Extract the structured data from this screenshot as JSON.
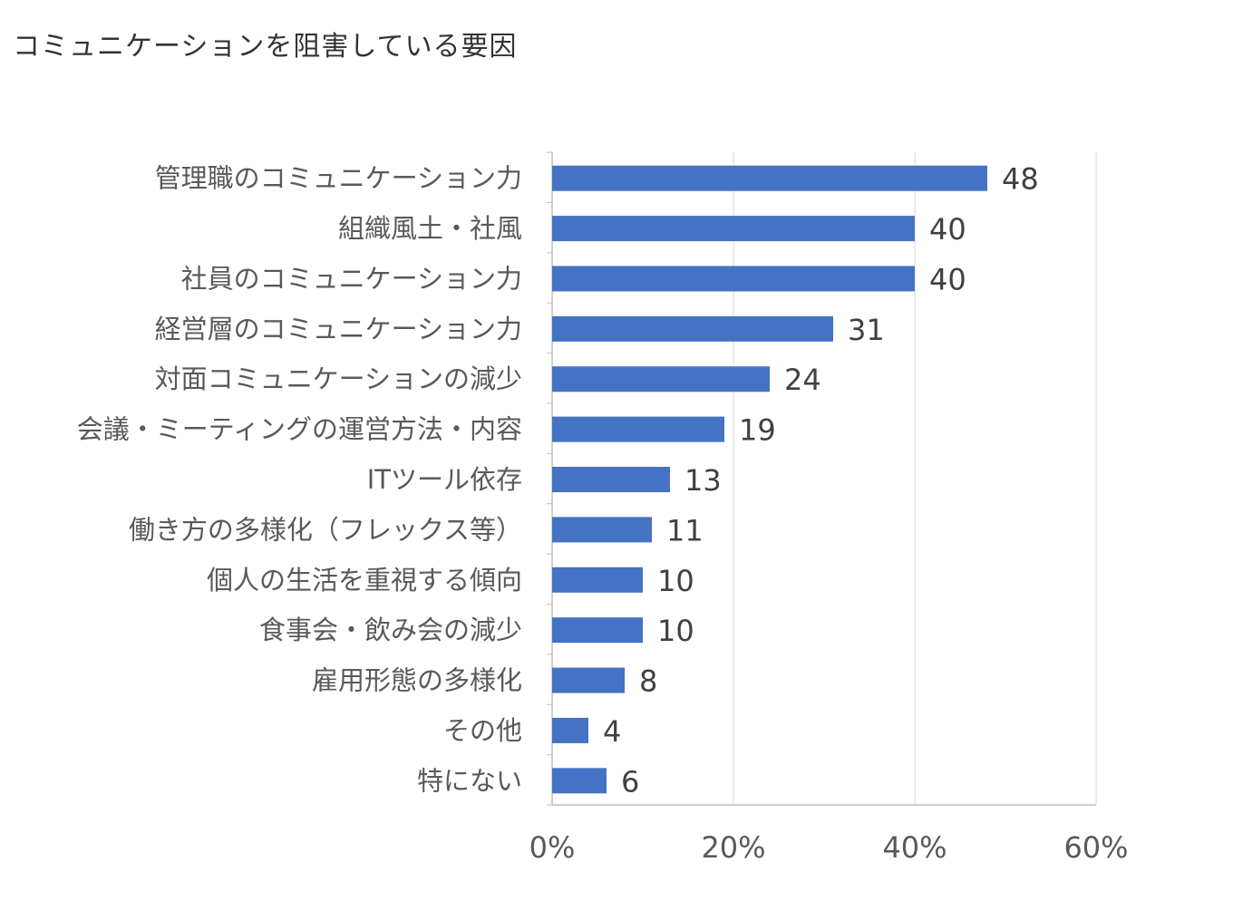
{
  "title": "コミュニケーションを阻害している要因",
  "colors": {
    "bar": "#4472C4",
    "grid": "#D9D9D9",
    "axis": "#BFBFBF"
  },
  "chart_data": {
    "type": "bar",
    "orientation": "horizontal",
    "categories": [
      "管理職のコミュニケーション力",
      "組織風土・社風",
      "社員のコミュニケーション力",
      "経営層のコミュニケーション力",
      "対面コミュニケーションの減少",
      "会議・ミーティングの運営方法・内容",
      "ITツール依存",
      "働き方の多様化（フレックス等）",
      "個人の生活を重視する傾向",
      "食事会・飲み会の減少",
      "雇用形態の多様化",
      "その他",
      "特にない"
    ],
    "values": [
      48,
      40,
      40,
      31,
      24,
      19,
      13,
      11,
      10,
      10,
      8,
      4,
      6
    ],
    "xlim": [
      0,
      60
    ],
    "xticks": [
      "0%",
      "20%",
      "40%",
      "60%"
    ],
    "grid": "vertical",
    "legend": "none"
  }
}
